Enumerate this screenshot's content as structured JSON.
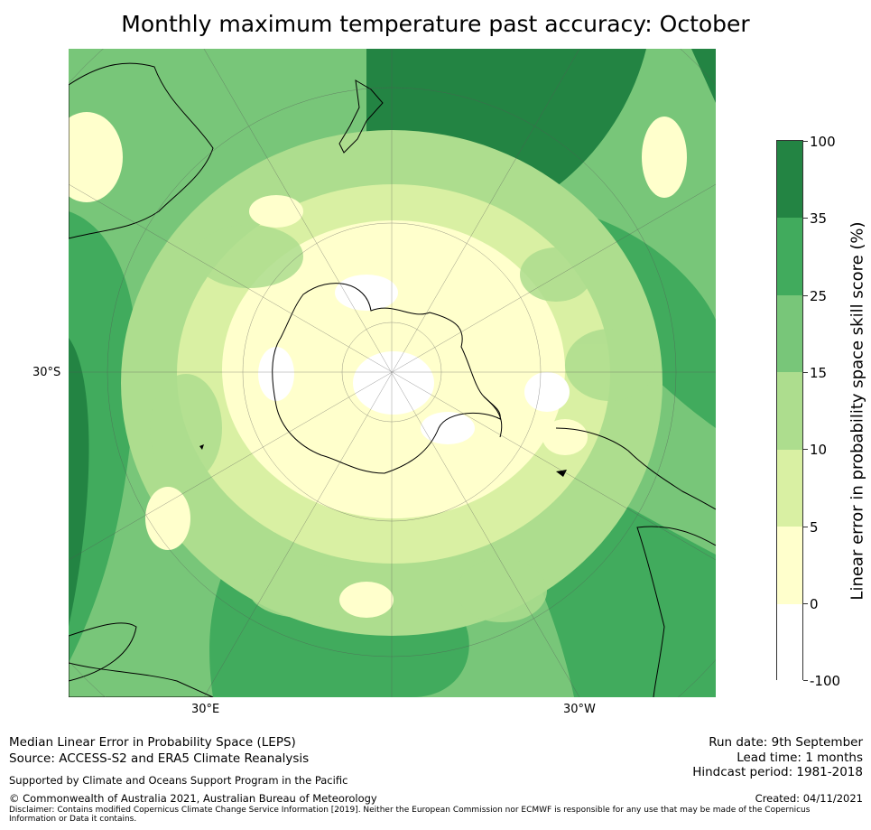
{
  "title": "Monthly maximum temperature past accuracy: October",
  "map": {
    "projection": "south polar stereographic",
    "graticule_labels": {
      "lat": "30°S",
      "lon_left": "30°E",
      "lon_right": "30°W"
    },
    "colors": {
      "ocean_high": "#238443",
      "land_outline": "#000000",
      "grid": "#555555"
    }
  },
  "colorbar": {
    "title": "Linear error in probability space skill score (%)",
    "ticks": [
      "100",
      "35",
      "25",
      "15",
      "10",
      "5",
      "0",
      "-100"
    ],
    "colors": [
      "#238443",
      "#41ab5d",
      "#78c679",
      "#addd8e",
      "#d9f0a3",
      "#ffffcc",
      "#ffffff"
    ]
  },
  "footer": {
    "line1": "Median Linear Error in Probability Space (LEPS)",
    "line2": "Source: ACCESS-S2 and ERA5 Climate Reanalysis",
    "support": "Supported by Climate and Oceans Support Program in the Pacific",
    "copyright": "© Commonwealth of Australia 2021, Australian Bureau of Meteorology",
    "disclaimer": "Disclaimer: Contains modified Copernicus Climate Change Service Information [2019]. Neither the European Commission nor ECMWF is responsible for any use that may be made of the Copernicus Information or Data it contains.",
    "run_date": "Run date: 9th September",
    "lead_time": "Lead time: 1 months",
    "hindcast": "Hindcast period: 1981-2018",
    "created": "Created: 04/11/2021"
  }
}
